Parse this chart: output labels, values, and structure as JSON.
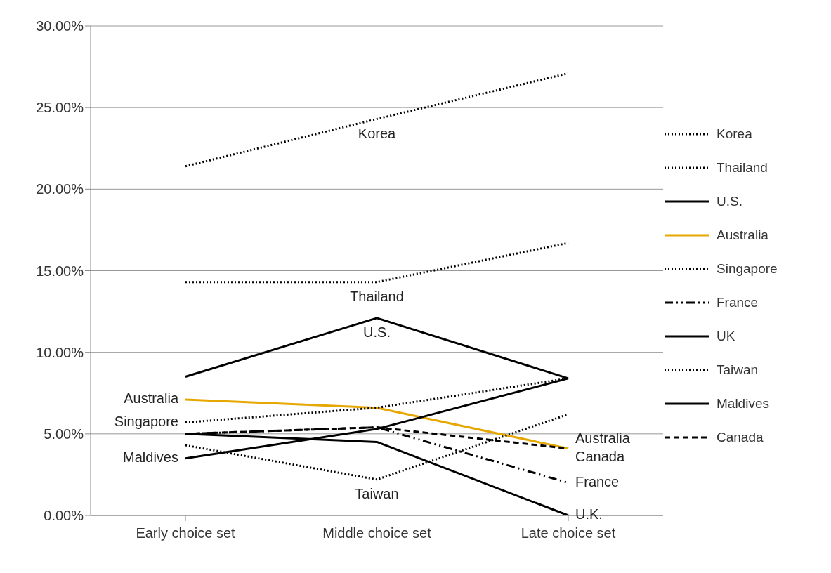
{
  "chart_data": {
    "type": "line",
    "categories": [
      "Early choice set",
      "Middle choice set",
      "Late choice set"
    ],
    "series": [
      {
        "name": "Korea",
        "color": "#000000",
        "line_style": "dotted",
        "values": [
          21.4,
          24.3,
          27.1
        ]
      },
      {
        "name": "Thailand",
        "color": "#000000",
        "line_style": "dotted",
        "values": [
          14.3,
          14.3,
          16.7
        ]
      },
      {
        "name": "U.S.",
        "color": "#000000",
        "line_style": "solid",
        "values": [
          8.5,
          12.1,
          8.4
        ]
      },
      {
        "name": "Australia",
        "color": "#e6a800",
        "line_style": "solid",
        "values": [
          7.1,
          6.6,
          4.1
        ]
      },
      {
        "name": "Singapore",
        "color": "#000000",
        "line_style": "dotted",
        "values": [
          5.7,
          6.6,
          8.4
        ]
      },
      {
        "name": "France",
        "color": "#000000",
        "line_style": "dashdot",
        "values": [
          5.0,
          5.4,
          2.0
        ]
      },
      {
        "name": "UK",
        "color": "#000000",
        "line_style": "solid",
        "values": [
          5.0,
          4.5,
          0.0
        ]
      },
      {
        "name": "Taiwan",
        "color": "#000000",
        "line_style": "dotted",
        "values": [
          4.3,
          2.2,
          6.2
        ]
      },
      {
        "name": "Maldives",
        "color": "#000000",
        "line_style": "solid",
        "values": [
          3.5,
          5.3,
          8.4
        ]
      },
      {
        "name": "Canada",
        "color": "#000000",
        "line_style": "dashed",
        "values": [
          5.0,
          5.4,
          4.1
        ]
      }
    ],
    "ylim": [
      0,
      30
    ],
    "yticks": [
      {
        "value": 0,
        "label": "0.00%"
      },
      {
        "value": 5,
        "label": "5.00%"
      },
      {
        "value": 10,
        "label": "10.00%"
      },
      {
        "value": 15,
        "label": "15.00%"
      },
      {
        "value": 20,
        "label": "20.00%"
      },
      {
        "value": 25,
        "label": "25.00%"
      },
      {
        "value": 30,
        "label": "30.00%"
      }
    ],
    "grid": "y",
    "legend": "right",
    "marker": "none",
    "annotations": [
      {
        "text": "Korea",
        "x": "Middle choice set",
        "y": 24.3
      },
      {
        "text": "Thailand",
        "x": "Middle choice set",
        "y": 14.3
      },
      {
        "text": "U.S.",
        "x": "Middle choice set",
        "y": 12.1
      },
      {
        "text": "Australia",
        "x": "Early choice set",
        "y": 7.1
      },
      {
        "text": "Singapore",
        "x": "Early choice set",
        "y": 5.7
      },
      {
        "text": "Maldives",
        "x": "Early choice set",
        "y": 3.5
      },
      {
        "text": "Taiwan",
        "x": "Middle choice set",
        "y": 2.2
      },
      {
        "text": "Australia",
        "x": "Late choice set",
        "y": 4.1
      },
      {
        "text": "Canada",
        "x": "Late choice set",
        "y": 4.1
      },
      {
        "text": "France",
        "x": "Late choice set",
        "y": 2.0
      },
      {
        "text": "U.K.",
        "x": "Late choice set",
        "y": 0.0
      }
    ]
  }
}
